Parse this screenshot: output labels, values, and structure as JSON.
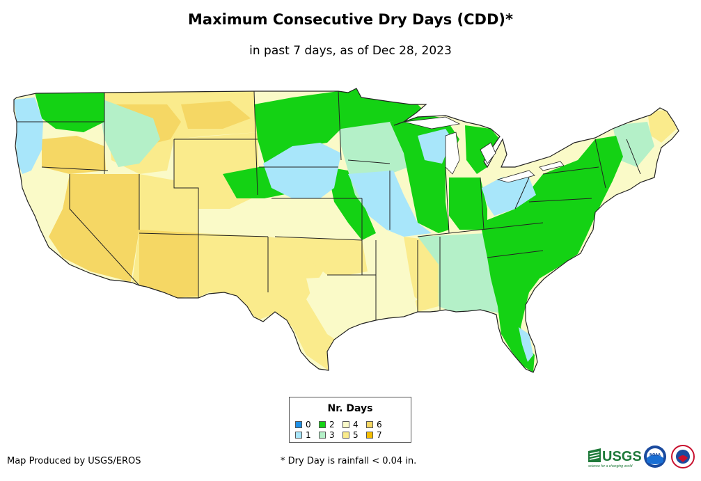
{
  "header": {
    "title": "Maximum Consecutive Dry Days (CDD)*",
    "subtitle": "in past 7 days, as of Dec 28, 2023"
  },
  "legend": {
    "title": "Nr. Days",
    "items": [
      {
        "label": "0",
        "color": "#1e90e6"
      },
      {
        "label": "1",
        "color": "#a8e6fa"
      },
      {
        "label": "2",
        "color": "#14d214"
      },
      {
        "label": "3",
        "color": "#b4f0c8"
      },
      {
        "label": "4",
        "color": "#fafac8"
      },
      {
        "label": "5",
        "color": "#faeb8c"
      },
      {
        "label": "6",
        "color": "#f5d764"
      },
      {
        "label": "7",
        "color": "#f5be00"
      }
    ]
  },
  "footer": {
    "credit": "Map Produced by USGS/EROS",
    "footnote": "* Dry Day is rainfall < 0.04 in."
  },
  "logos": {
    "usgs": "USGS",
    "usgs_tagline": "science for a changing world",
    "noaa": "NOAA",
    "nws": "NATIONAL WEATHER SERVICE"
  }
}
